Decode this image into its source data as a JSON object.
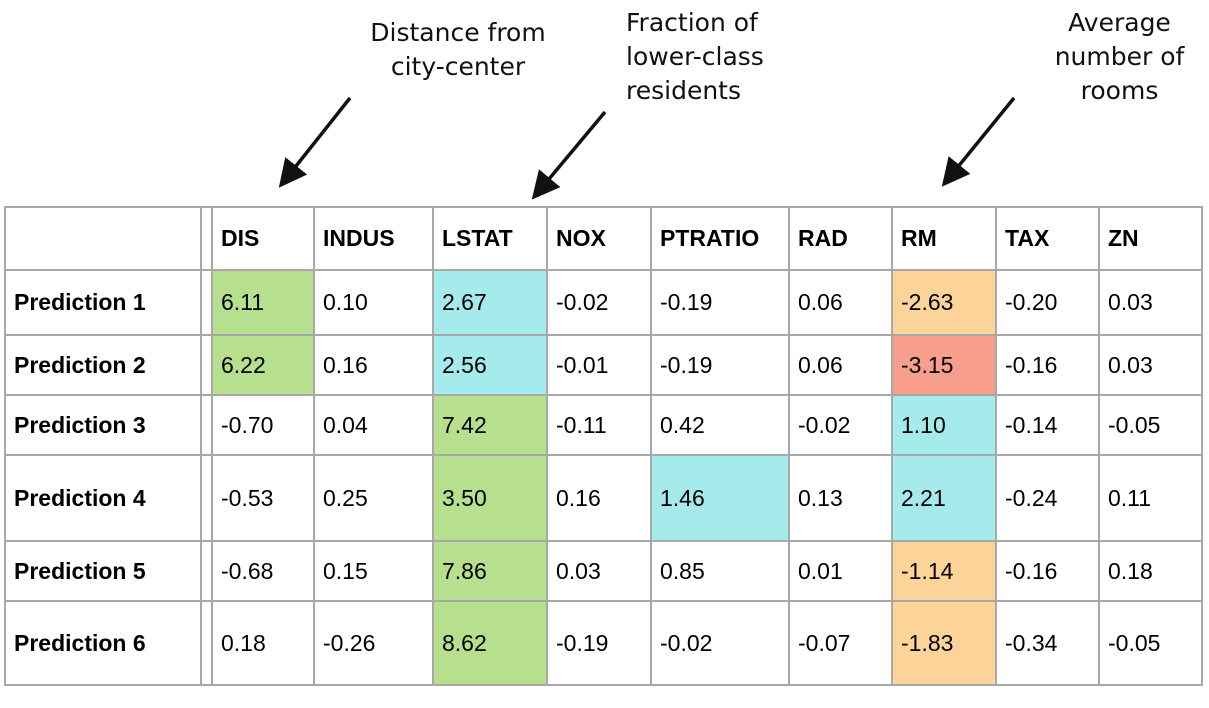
{
  "annotations": {
    "dis": "Distance from\ncity-center",
    "lstat": "Fraction of\nlower-class\nresidents",
    "rm": "Average\nnumber of\nrooms"
  },
  "colors": {
    "green": "#b6df8e",
    "cyan": "#a6ebeb",
    "orange": "#fcd49a",
    "red": "#f89e8c",
    "border": "#a8a8a8"
  },
  "chart_data": {
    "type": "table",
    "columns": [
      "DIS",
      "INDUS",
      "LSTAT",
      "NOX",
      "PTRATIO",
      "RAD",
      "RM",
      "TAX",
      "ZN"
    ],
    "rows": [
      {
        "label": "Prediction 1",
        "values": [
          "6.11",
          "0.10",
          "2.67",
          "-0.02",
          "-0.19",
          "0.06",
          "-2.63",
          "-0.20",
          "0.03"
        ],
        "highlights": {
          "0": "green",
          "2": "cyan",
          "6": "orange"
        }
      },
      {
        "label": "Prediction 2",
        "values": [
          "6.22",
          "0.16",
          "2.56",
          "-0.01",
          "-0.19",
          "0.06",
          "-3.15",
          "-0.16",
          "0.03"
        ],
        "highlights": {
          "0": "green",
          "2": "cyan",
          "6": "red"
        }
      },
      {
        "label": "Prediction 3",
        "values": [
          "-0.70",
          "0.04",
          "7.42",
          "-0.11",
          "0.42",
          "-0.02",
          "1.10",
          "-0.14",
          "-0.05"
        ],
        "highlights": {
          "2": "green",
          "6": "cyan"
        }
      },
      {
        "label": "Prediction 4",
        "values": [
          "-0.53",
          "0.25",
          "3.50",
          "0.16",
          "1.46",
          "0.13",
          "2.21",
          "-0.24",
          "0.11"
        ],
        "highlights": {
          "2": "green",
          "4": "cyan",
          "6": "cyan"
        }
      },
      {
        "label": "Prediction 5",
        "values": [
          "-0.68",
          "0.15",
          "7.86",
          "0.03",
          "0.85",
          "0.01",
          "-1.14",
          "-0.16",
          "0.18"
        ],
        "highlights": {
          "2": "green",
          "6": "orange"
        }
      },
      {
        "label": "Prediction 6",
        "values": [
          "0.18",
          "-0.26",
          "8.62",
          "-0.19",
          "-0.02",
          "-0.07",
          "-1.83",
          "-0.34",
          "-0.05"
        ],
        "highlights": {
          "2": "green",
          "6": "orange"
        }
      }
    ]
  }
}
